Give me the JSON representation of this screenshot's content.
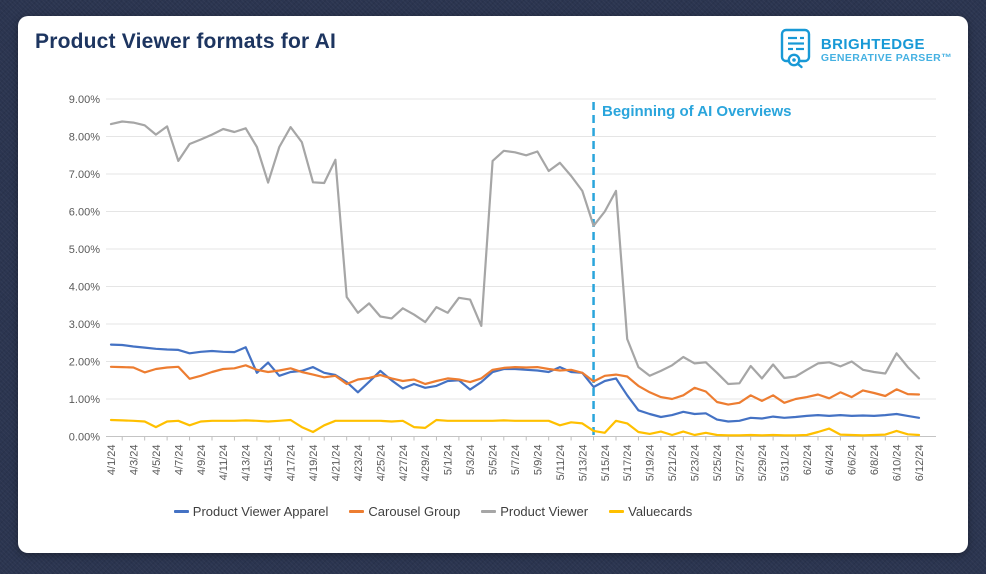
{
  "page": {
    "background": "#2b3550",
    "card_background": "#ffffff"
  },
  "header": {
    "title": "Product Viewer formats for AI",
    "title_color": "#1d3560"
  },
  "logo": {
    "brand": "BRIGHTEDGE",
    "product": "GENERATIVE PARSER™",
    "primary_color": "#1899d6",
    "secondary_color": "#45b1e2"
  },
  "chart_data": {
    "type": "line",
    "title": "Product Viewer formats for AI",
    "grid": true,
    "legend_position": "bottom",
    "ylim": [
      0,
      9
    ],
    "y_unit": "percent",
    "y_ticks": [
      "0.00%",
      "1.00%",
      "2.00%",
      "3.00%",
      "4.00%",
      "5.00%",
      "6.00%",
      "7.00%",
      "8.00%",
      "9.00%"
    ],
    "x_label_every": 2,
    "x": [
      "4/1/24",
      "4/2/24",
      "4/3/24",
      "4/4/24",
      "4/5/24",
      "4/6/24",
      "4/7/24",
      "4/8/24",
      "4/9/24",
      "4/10/24",
      "4/11/24",
      "4/12/24",
      "4/13/24",
      "4/14/24",
      "4/15/24",
      "4/16/24",
      "4/17/24",
      "4/18/24",
      "4/19/24",
      "4/20/24",
      "4/21/24",
      "4/22/24",
      "4/23/24",
      "4/24/24",
      "4/25/24",
      "4/26/24",
      "4/27/24",
      "4/28/24",
      "4/29/24",
      "4/30/24",
      "5/1/24",
      "5/2/24",
      "5/3/24",
      "5/4/24",
      "5/5/24",
      "5/6/24",
      "5/7/24",
      "5/8/24",
      "5/9/24",
      "5/10/24",
      "5/11/24",
      "5/12/24",
      "5/13/24",
      "5/14/24",
      "5/15/24",
      "5/16/24",
      "5/17/24",
      "5/18/24",
      "5/19/24",
      "5/20/24",
      "5/21/24",
      "5/22/24",
      "5/23/24",
      "5/24/24",
      "5/25/24",
      "5/26/24",
      "5/27/24",
      "5/28/24",
      "5/29/24",
      "5/30/24",
      "5/31/24",
      "6/1/24",
      "6/2/24",
      "6/3/24",
      "6/4/24",
      "6/5/24",
      "6/6/24",
      "6/7/24",
      "6/8/24",
      "6/9/24",
      "6/10/24",
      "6/11/24",
      "6/12/24"
    ],
    "annotation": {
      "text": "Beginning of AI Overviews",
      "x_value": "5/14/24",
      "x_index": 43,
      "color": "#2aa5dc",
      "style": "dashed-vertical-line"
    },
    "series": [
      {
        "name": "Product Viewer Apparel",
        "color": "#4472c4",
        "values": [
          2.45,
          2.44,
          2.4,
          2.37,
          2.34,
          2.32,
          2.31,
          2.22,
          2.26,
          2.28,
          2.26,
          2.25,
          2.38,
          1.7,
          1.97,
          1.62,
          1.72,
          1.75,
          1.85,
          1.7,
          1.64,
          1.45,
          1.18,
          1.46,
          1.75,
          1.5,
          1.28,
          1.4,
          1.3,
          1.35,
          1.48,
          1.5,
          1.25,
          1.45,
          1.72,
          1.8,
          1.8,
          1.78,
          1.76,
          1.72,
          1.85,
          1.72,
          1.7,
          1.32,
          1.48,
          1.55,
          1.1,
          0.7,
          0.6,
          0.52,
          0.57,
          0.66,
          0.6,
          0.62,
          0.45,
          0.4,
          0.42,
          0.5,
          0.48,
          0.53,
          0.5,
          0.52,
          0.55,
          0.57,
          0.55,
          0.57,
          0.55,
          0.56,
          0.55,
          0.57,
          0.6,
          0.55,
          0.5
        ]
      },
      {
        "name": "Carousel Group",
        "color": "#ed7d31",
        "values": [
          1.86,
          1.85,
          1.84,
          1.71,
          1.8,
          1.84,
          1.86,
          1.54,
          1.62,
          1.72,
          1.8,
          1.82,
          1.9,
          1.78,
          1.72,
          1.76,
          1.82,
          1.72,
          1.65,
          1.58,
          1.62,
          1.4,
          1.52,
          1.56,
          1.64,
          1.55,
          1.48,
          1.52,
          1.4,
          1.48,
          1.55,
          1.52,
          1.45,
          1.55,
          1.78,
          1.83,
          1.85,
          1.84,
          1.85,
          1.8,
          1.76,
          1.78,
          1.7,
          1.47,
          1.62,
          1.65,
          1.6,
          1.35,
          1.18,
          1.05,
          1.0,
          1.1,
          1.3,
          1.2,
          0.92,
          0.85,
          0.9,
          1.1,
          0.95,
          1.1,
          0.9,
          1.0,
          1.05,
          1.12,
          1.02,
          1.18,
          1.05,
          1.23,
          1.16,
          1.08,
          1.26,
          1.13,
          1.12
        ]
      },
      {
        "name": "Product Viewer",
        "color": "#a6a6a6",
        "values": [
          8.33,
          8.4,
          8.37,
          8.3,
          8.05,
          8.27,
          7.35,
          7.8,
          7.92,
          8.05,
          8.2,
          8.12,
          8.22,
          7.72,
          6.77,
          7.72,
          8.25,
          7.85,
          6.78,
          6.76,
          7.38,
          3.72,
          3.3,
          3.55,
          3.2,
          3.15,
          3.42,
          3.25,
          3.05,
          3.45,
          3.3,
          3.7,
          3.65,
          2.95,
          7.35,
          7.62,
          7.58,
          7.5,
          7.6,
          7.08,
          7.3,
          6.95,
          6.55,
          5.62,
          6.0,
          6.55,
          2.6,
          1.85,
          1.62,
          1.75,
          1.9,
          2.12,
          1.95,
          1.98,
          1.7,
          1.4,
          1.42,
          1.88,
          1.55,
          1.92,
          1.56,
          1.6,
          1.78,
          1.95,
          1.98,
          1.87,
          2.0,
          1.78,
          1.72,
          1.68,
          2.22,
          1.85,
          1.55
        ]
      },
      {
        "name": "Valuecards",
        "color": "#ffc000",
        "values": [
          0.44,
          0.43,
          0.42,
          0.4,
          0.25,
          0.4,
          0.42,
          0.3,
          0.4,
          0.42,
          0.42,
          0.42,
          0.43,
          0.42,
          0.4,
          0.42,
          0.44,
          0.25,
          0.12,
          0.3,
          0.42,
          0.42,
          0.42,
          0.42,
          0.42,
          0.4,
          0.42,
          0.25,
          0.23,
          0.44,
          0.42,
          0.42,
          0.42,
          0.42,
          0.42,
          0.43,
          0.42,
          0.42,
          0.42,
          0.42,
          0.3,
          0.38,
          0.35,
          0.15,
          0.1,
          0.42,
          0.35,
          0.12,
          0.07,
          0.13,
          0.04,
          0.13,
          0.04,
          0.1,
          0.04,
          0.03,
          0.03,
          0.04,
          0.03,
          0.04,
          0.03,
          0.03,
          0.04,
          0.12,
          0.21,
          0.05,
          0.04,
          0.03,
          0.04,
          0.05,
          0.15,
          0.06,
          0.04
        ]
      }
    ]
  }
}
